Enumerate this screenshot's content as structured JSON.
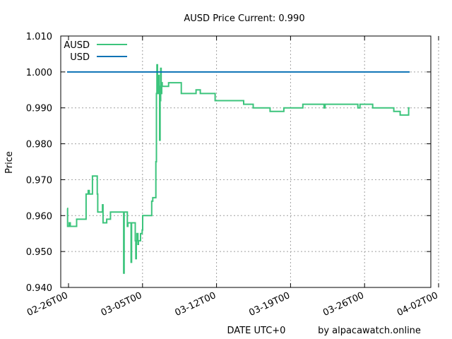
{
  "chart_data": {
    "type": "line",
    "title": "AUSD Price Current: 0.990",
    "xlabel": "DATE UTC+0",
    "ylabel": "Price",
    "credit": "by alpacawatch.online",
    "ylim": [
      0.94,
      1.01
    ],
    "y_ticks": [
      "0.940",
      "0.950",
      "0.960",
      "0.970",
      "0.980",
      "0.990",
      "1.000",
      "1.010"
    ],
    "x_ticks": [
      "02-26T00",
      "03-05T00",
      "03-12T00",
      "03-19T00",
      "03-26T00",
      "04-02T00"
    ],
    "xlim_days": [
      0,
      35
    ],
    "grid": true,
    "legend_position": "top-left",
    "series": [
      {
        "name": "AUSD",
        "color": "#3cc47c",
        "points": [
          [
            0.6,
            0.962
          ],
          [
            0.65,
            0.957
          ],
          [
            0.8,
            0.958
          ],
          [
            0.9,
            0.957
          ],
          [
            1.4,
            0.957
          ],
          [
            1.5,
            0.959
          ],
          [
            2.0,
            0.959
          ],
          [
            2.3,
            0.959
          ],
          [
            2.4,
            0.966
          ],
          [
            2.6,
            0.967
          ],
          [
            2.7,
            0.966
          ],
          [
            2.9,
            0.966
          ],
          [
            3.0,
            0.971
          ],
          [
            3.4,
            0.971
          ],
          [
            3.45,
            0.966
          ],
          [
            3.5,
            0.961
          ],
          [
            3.9,
            0.961
          ],
          [
            3.95,
            0.963
          ],
          [
            4.0,
            0.958
          ],
          [
            4.3,
            0.958
          ],
          [
            4.35,
            0.959
          ],
          [
            4.6,
            0.959
          ],
          [
            4.7,
            0.961
          ],
          [
            5.9,
            0.961
          ],
          [
            5.95,
            0.944
          ],
          [
            6.0,
            0.961
          ],
          [
            6.2,
            0.961
          ],
          [
            6.3,
            0.957
          ],
          [
            6.35,
            0.958
          ],
          [
            6.6,
            0.958
          ],
          [
            6.65,
            0.947
          ],
          [
            6.7,
            0.958
          ],
          [
            7.0,
            0.958
          ],
          [
            7.05,
            0.953
          ],
          [
            7.1,
            0.948
          ],
          [
            7.15,
            0.953
          ],
          [
            7.2,
            0.955
          ],
          [
            7.3,
            0.952
          ],
          [
            7.35,
            0.953
          ],
          [
            7.5,
            0.953
          ],
          [
            7.55,
            0.955
          ],
          [
            7.7,
            0.956
          ],
          [
            7.75,
            0.96
          ],
          [
            8.5,
            0.96
          ],
          [
            8.6,
            0.964
          ],
          [
            8.7,
            0.965
          ],
          [
            8.9,
            0.965
          ],
          [
            9.0,
            0.975
          ],
          [
            9.05,
            0.994
          ],
          [
            9.1,
            1.002
          ],
          [
            9.15,
            0.998
          ],
          [
            9.2,
            0.994
          ],
          [
            9.25,
            0.999
          ],
          [
            9.3,
            0.996
          ],
          [
            9.35,
            0.981
          ],
          [
            9.4,
            0.992
          ],
          [
            9.45,
            1.001
          ],
          [
            9.5,
            0.994
          ],
          [
            9.55,
            0.997
          ],
          [
            9.6,
            0.996
          ],
          [
            10.0,
            0.996
          ],
          [
            10.2,
            0.997
          ],
          [
            11.3,
            0.997
          ],
          [
            11.4,
            0.994
          ],
          [
            12.7,
            0.994
          ],
          [
            12.8,
            0.995
          ],
          [
            13.1,
            0.995
          ],
          [
            13.2,
            0.994
          ],
          [
            14.5,
            0.994
          ],
          [
            14.6,
            0.992
          ],
          [
            17.2,
            0.992
          ],
          [
            17.3,
            0.991
          ],
          [
            18.1,
            0.991
          ],
          [
            18.2,
            0.99
          ],
          [
            19.7,
            0.99
          ],
          [
            19.8,
            0.989
          ],
          [
            21.0,
            0.989
          ],
          [
            21.1,
            0.99
          ],
          [
            22.8,
            0.99
          ],
          [
            22.9,
            0.991
          ],
          [
            24.8,
            0.991
          ],
          [
            24.9,
            0.99
          ],
          [
            25.0,
            0.991
          ],
          [
            28.0,
            0.991
          ],
          [
            28.1,
            0.99
          ],
          [
            28.3,
            0.991
          ],
          [
            29.4,
            0.991
          ],
          [
            29.5,
            0.99
          ],
          [
            31.4,
            0.99
          ],
          [
            31.5,
            0.989
          ],
          [
            32.0,
            0.989
          ],
          [
            32.1,
            0.988
          ],
          [
            32.8,
            0.988
          ],
          [
            32.9,
            0.99
          ],
          [
            33.0,
            0.99
          ]
        ]
      },
      {
        "name": "USD",
        "color": "#0a72b5",
        "points": [
          [
            0.6,
            1.0
          ],
          [
            33.0,
            1.0
          ]
        ]
      }
    ]
  }
}
